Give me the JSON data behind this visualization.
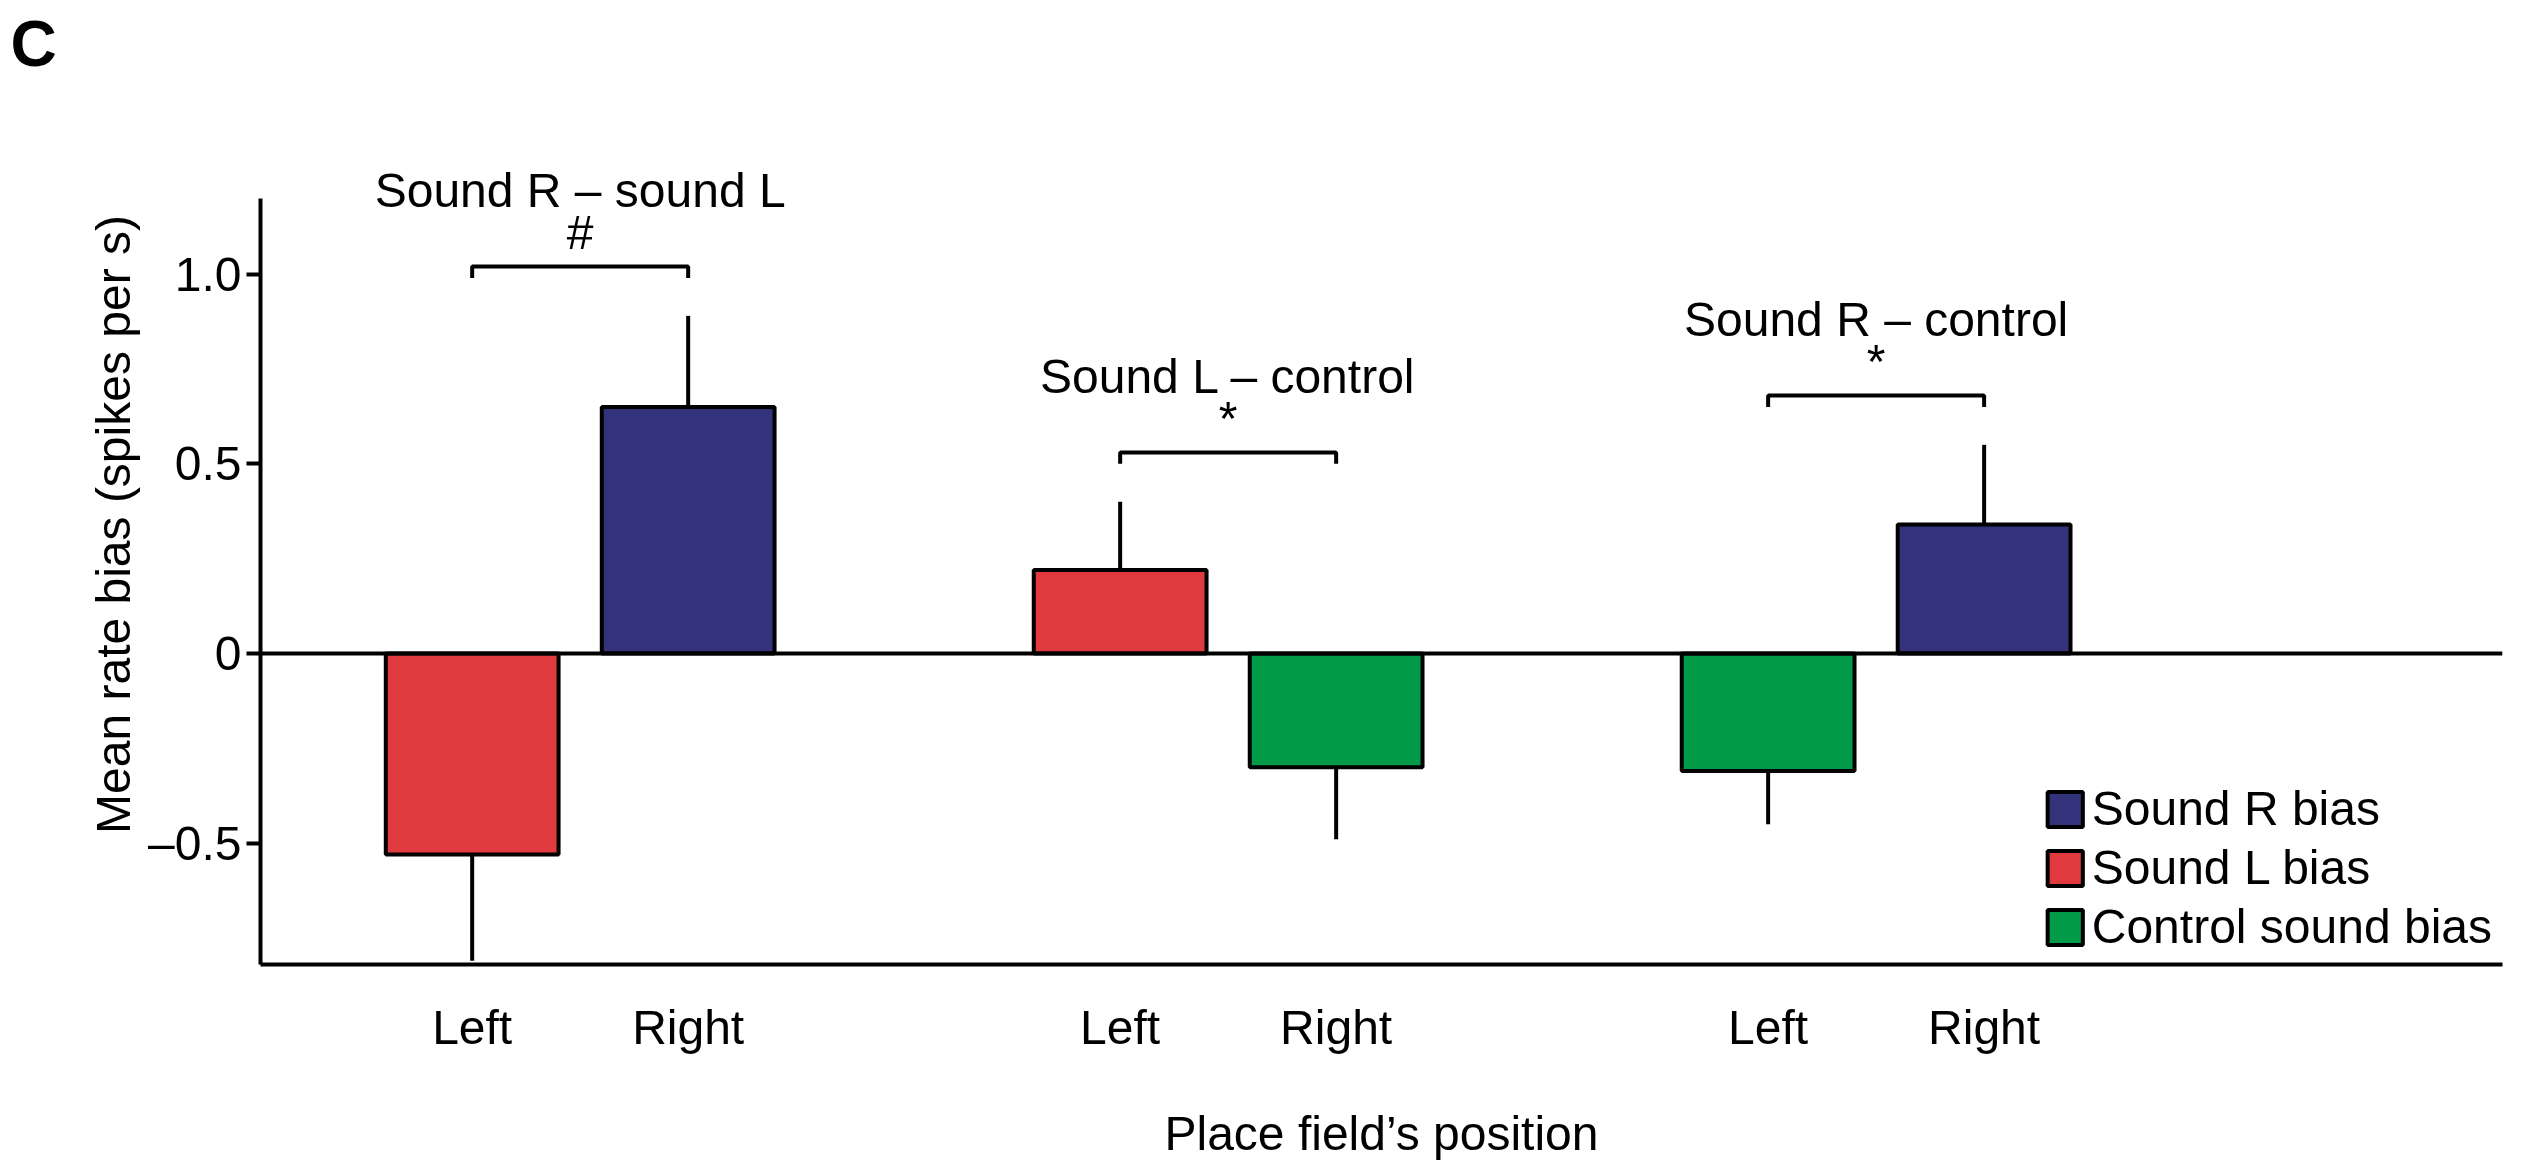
{
  "chart_data": {
    "type": "bar",
    "categories": [
      "Left",
      "Right",
      null,
      "Left",
      "Right",
      null,
      "Left",
      "Right"
    ],
    "series": [
      {
        "name": "Sound R bias",
        "color": "#32337a",
        "values": [
          null,
          0.65,
          null,
          null,
          null,
          null,
          null,
          0.34
        ],
        "errors": [
          null,
          [
            0.65,
            0.89
          ],
          null,
          null,
          null,
          null,
          null,
          [
            0.34,
            0.55
          ]
        ]
      },
      {
        "name": "Sound L bias",
        "color": "#e0393e",
        "values": [
          -0.53,
          null,
          null,
          0.22,
          null,
          null,
          null,
          null
        ],
        "errors": [
          [
            -0.81,
            -0.53
          ],
          null,
          null,
          [
            0.22,
            0.4
          ],
          null,
          null,
          null,
          null
        ]
      },
      {
        "name": "Control sound bias",
        "color": "#009a49",
        "values": [
          null,
          null,
          null,
          null,
          -0.3,
          null,
          -0.31,
          null
        ],
        "errors": [
          null,
          null,
          null,
          null,
          [
            -0.49,
            -0.3
          ],
          null,
          [
            -0.45,
            -0.31
          ],
          null
        ]
      }
    ],
    "xlabel": "Place field’s position",
    "ylabel": "Mean rate bias (spikes per s)",
    "ylim": [
      -0.82,
      1.2
    ],
    "yticks": [
      {
        "value": -0.5,
        "label": "–0.5"
      },
      0,
      0.5,
      {
        "value": 1.0,
        "label": "1.0"
      }
    ],
    "ref_lines": [
      {
        "axis": "y",
        "value": 0
      }
    ],
    "annotations": [
      "C",
      "Sound R – sound L",
      "#",
      "Sound L – control",
      "*",
      "Sound R – control",
      "*"
    ],
    "legend": "bottom right",
    "grid": false
  }
}
